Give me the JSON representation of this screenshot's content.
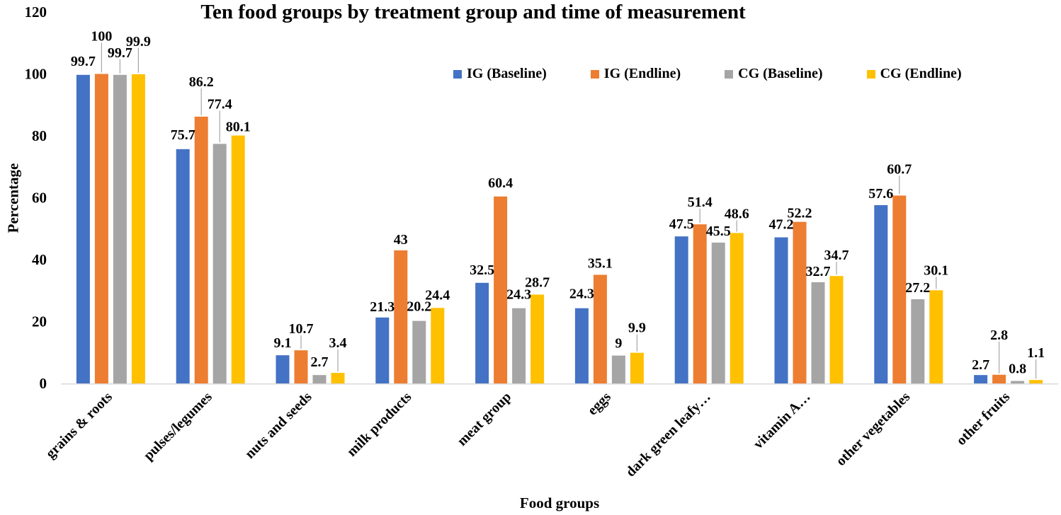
{
  "chart_data": {
    "type": "bar",
    "title": "Ten food groups by treatment group and time of measurement",
    "xlabel": "Food groups",
    "ylabel": "Percentage",
    "ylim": [
      0,
      120
    ],
    "yticks": [
      0,
      20,
      40,
      60,
      80,
      100,
      120
    ],
    "grid": false,
    "legend_position": "top",
    "axis_line_color": "#d9d9d9",
    "leader_line_color": "#a6a6a6",
    "categories": [
      "grains & roots",
      "pulses/legumes",
      "nuts and seeds",
      "milk products",
      "meat group",
      "eggs",
      "dark green leafy…",
      "vitamin A…",
      "other vegetables",
      "other fruits"
    ],
    "series": [
      {
        "name": "IG (Baseline)",
        "color": "#4472C4",
        "values": [
          99.7,
          75.7,
          9.1,
          21.3,
          32.5,
          24.3,
          47.5,
          47.2,
          57.6,
          2.7
        ]
      },
      {
        "name": "IG (Endline)",
        "color": "#ED7D31",
        "values": [
          100,
          86.2,
          10.7,
          43,
          60.4,
          35.1,
          51.4,
          52.2,
          60.7,
          2.8
        ]
      },
      {
        "name": "CG (Baseline)",
        "color": "#A5A5A5",
        "values": [
          99.7,
          77.4,
          2.7,
          20.2,
          24.3,
          9,
          45.5,
          32.7,
          27.2,
          0.8
        ]
      },
      {
        "name": "CG (Endline)",
        "color": "#FFC000",
        "values": [
          99.9,
          80.1,
          3.4,
          24.4,
          28.7,
          9.9,
          48.6,
          34.7,
          30.1,
          1.1
        ]
      }
    ],
    "label_raise": [
      [
        13,
        47,
        25,
        40
      ],
      [
        14,
        43,
        50,
        6
      ],
      [
        11,
        24,
        12,
        36
      ],
      [
        9,
        9,
        14,
        12
      ],
      [
        12,
        13,
        13,
        11
      ],
      [
        14,
        10,
        11,
        29
      ],
      [
        11,
        25,
        10,
        21
      ],
      [
        12,
        6,
        9,
        23
      ],
      [
        10,
        31,
        10,
        22
      ],
      [
        8,
        50,
        11,
        32
      ]
    ]
  }
}
